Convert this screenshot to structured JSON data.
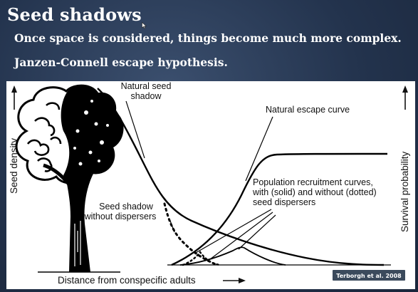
{
  "slide": {
    "title": "Seed shadows",
    "bullets": [
      "Once space is considered, things become much more complex.",
      "Janzen-Connell escape hypothesis."
    ]
  },
  "figure": {
    "labels": {
      "natural_seed_shadow_1": "Natural seed",
      "natural_seed_shadow_2": "shadow",
      "natural_escape_curve": "Natural escape curve",
      "seed_shadow_without_1": "Seed shadow",
      "seed_shadow_without_2": "without dispersers",
      "recruitment_1": "Population recruitment curves,",
      "recruitment_2": "with (solid) and without (dotted)",
      "recruitment_3": "seed dispersers"
    },
    "y_axis_left": "Seed density",
    "y_axis_right": "Survival probability",
    "x_axis": "Distance from conspecific adults",
    "credit": "Terborgh et al. 2008"
  }
}
